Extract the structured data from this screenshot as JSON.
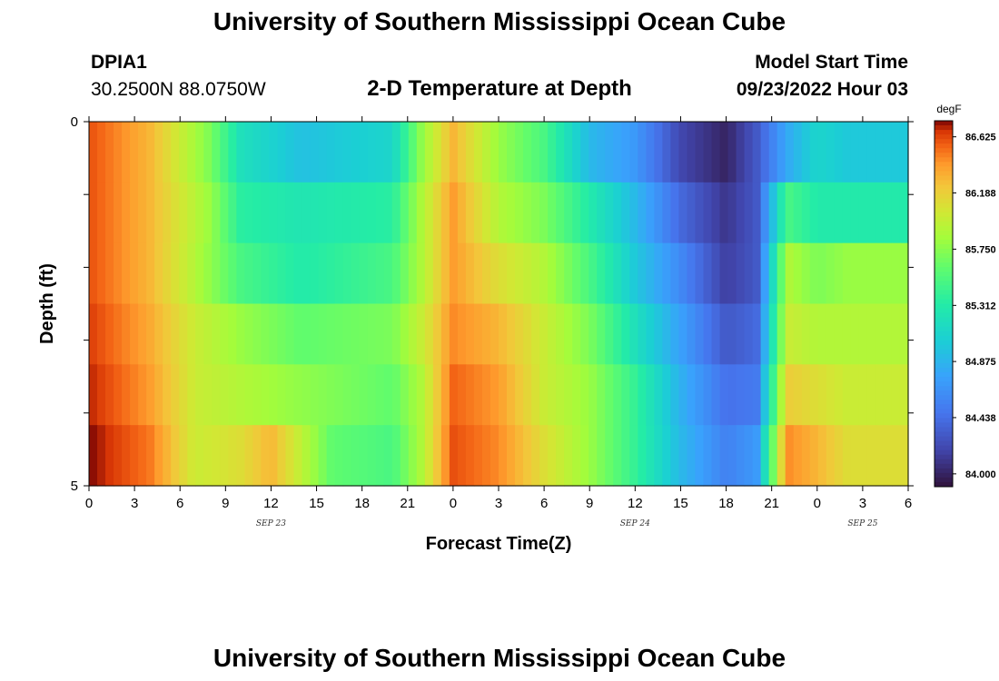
{
  "header": {
    "title": "University of Southern Mississippi Ocean Cube",
    "station_id": "DPIA1",
    "coordinates": "30.2500N  88.0750W",
    "plot_title": "2-D Temperature at Depth",
    "start_label": "Model Start Time",
    "start_value": "09/23/2022 Hour 03"
  },
  "footer": {
    "title": "University of Southern Mississippi Ocean Cube"
  },
  "chart_data": {
    "type": "heatmap",
    "title": "2-D Temperature at Depth",
    "xlabel": "Forecast Time(Z)",
    "ylabel": "Depth (ft)",
    "x_tick_labels": [
      "0",
      "3",
      "6",
      "9",
      "12",
      "15",
      "18",
      "21",
      "0",
      "3",
      "6",
      "9",
      "12",
      "15",
      "18",
      "21",
      "0",
      "3",
      "6"
    ],
    "date_labels": [
      "SEP 23",
      "SEP 24",
      "SEP 25"
    ],
    "y_tick_labels": [
      "0",
      "5"
    ],
    "ylim": [
      0,
      5
    ],
    "colorbar": {
      "unit": "degF",
      "min": 83.9,
      "max": 86.75,
      "ticks": [
        "86.625",
        "86.188",
        "85.750",
        "85.312",
        "84.875",
        "84.438",
        "84.000"
      ]
    },
    "depth_rows": [
      {
        "times": [
          0,
          4,
          8,
          10,
          14,
          20,
          22,
          24,
          27,
          30,
          33,
          36,
          39,
          42,
          44,
          46,
          48,
          50
        ],
        "values": [
          86.6,
          86.3,
          85.7,
          85.2,
          84.95,
          85.1,
          85.8,
          86.3,
          85.8,
          85.5,
          84.9,
          84.7,
          84.2,
          84.0,
          84.3,
          84.8,
          85.1,
          85.0
        ]
      },
      {
        "times": [
          0,
          4,
          8,
          10,
          14,
          20,
          22,
          24,
          27,
          30,
          33,
          36,
          39,
          42,
          44,
          46,
          48,
          50
        ],
        "values": [
          86.6,
          86.3,
          85.8,
          85.35,
          85.25,
          85.35,
          85.9,
          86.4,
          85.9,
          85.7,
          85.3,
          84.9,
          84.4,
          84.1,
          84.3,
          85.5,
          85.3,
          85.3
        ]
      },
      {
        "times": [
          0,
          4,
          7,
          10,
          14,
          20,
          22,
          24,
          27,
          30,
          33,
          36,
          39,
          42,
          44,
          46,
          48,
          50
        ],
        "values": [
          86.6,
          86.3,
          85.9,
          85.5,
          85.3,
          85.5,
          85.9,
          86.4,
          86.1,
          85.9,
          85.5,
          85.0,
          84.6,
          84.15,
          84.3,
          85.9,
          85.7,
          85.8
        ]
      },
      {
        "times": [
          0,
          4,
          7,
          10,
          14,
          20,
          22,
          24,
          27,
          30,
          33,
          36,
          39,
          42,
          44,
          46,
          48,
          50
        ],
        "values": [
          86.65,
          86.35,
          86.0,
          85.8,
          85.6,
          85.7,
          86.0,
          86.45,
          86.3,
          86.0,
          85.7,
          85.2,
          84.75,
          84.3,
          84.4,
          86.0,
          85.9,
          85.9
        ]
      },
      {
        "times": [
          0,
          4,
          7,
          10,
          13,
          20,
          22,
          24,
          27,
          30,
          33,
          36,
          39,
          42,
          44,
          46,
          48,
          50
        ],
        "values": [
          86.7,
          86.4,
          86.0,
          85.9,
          85.8,
          85.6,
          85.9,
          86.55,
          86.4,
          86.0,
          85.8,
          85.4,
          84.85,
          84.45,
          84.5,
          86.2,
          86.1,
          86.0
        ]
      },
      {
        "times": [
          0,
          4,
          7,
          10,
          12,
          16,
          20,
          22,
          24,
          27,
          30,
          33,
          36,
          39,
          42,
          44,
          46,
          48,
          50
        ],
        "values": [
          86.75,
          86.5,
          86.0,
          86.1,
          86.3,
          85.6,
          85.5,
          85.9,
          86.6,
          86.45,
          86.1,
          85.8,
          85.4,
          84.9,
          84.55,
          84.7,
          86.45,
          86.3,
          86.1
        ]
      }
    ]
  }
}
